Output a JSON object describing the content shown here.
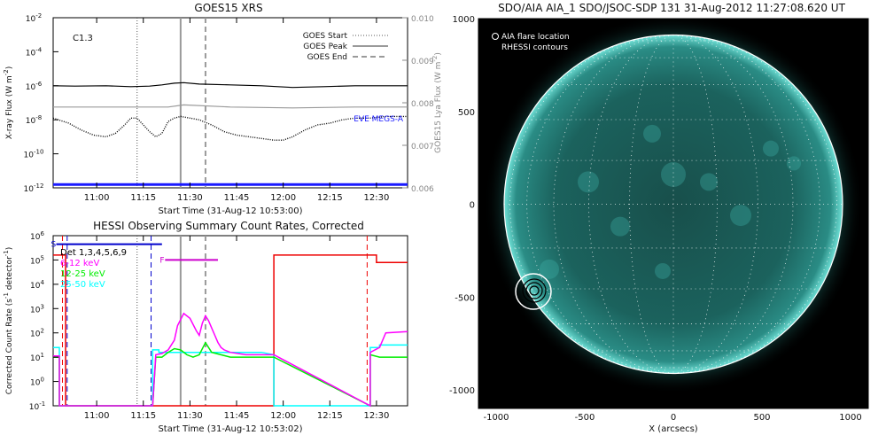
{
  "chart_data": [
    {
      "type": "line",
      "title": "GOES15 XRS",
      "xlabel": "Start Time (31-Aug-12 10:53:00)",
      "ylabel": "X-ray Flux (W m",
      "ylabel_exp": "-2",
      "ylabel_close": ")",
      "y2label": "GOES15 Lya Flux (W m",
      "y2label_exp": "-2",
      "y2label_close": ")",
      "annotation": "C1.3",
      "x_ticks": [
        "11:00",
        "11:15",
        "11:30",
        "11:45",
        "12:00",
        "12:15",
        "12:30"
      ],
      "x_tick_minutes": [
        67,
        82,
        97,
        112,
        127,
        142,
        157
      ],
      "xlim_minutes": [
        53,
        167
      ],
      "y_ticks_exp": [
        -12,
        -10,
        -8,
        -6,
        -4,
        -2
      ],
      "ylim_exp": [
        -12,
        -2
      ],
      "y_scale": "log",
      "y2_ticks": [
        "0.006",
        "0.007",
        "0.008",
        "0.009",
        "0.010"
      ],
      "y2_tick_values": [
        0.006,
        0.007,
        0.008,
        0.009,
        0.01
      ],
      "y2lim": [
        0.006,
        0.01
      ],
      "legend": [
        {
          "name": "GOES Start",
          "style": "dotted",
          "color": "#555555"
        },
        {
          "name": "GOES Peak",
          "style": "solid",
          "color": "#9a9a9a"
        },
        {
          "name": "GOES End",
          "style": "dashed",
          "color": "#9a9a9a"
        }
      ],
      "legend_position": "top-right",
      "markers": {
        "start_min": 80,
        "peak_min": 94,
        "end_min": 102
      },
      "eve_label": "EVE MEGS-A",
      "eve_color": "#1a1aff",
      "series": [
        {
          "name": "long",
          "color": "#000000",
          "x": [
            53,
            60,
            70,
            78,
            84,
            88,
            92,
            95,
            100,
            110,
            120,
            130,
            140,
            150,
            157,
            167
          ],
          "log_y": [
            -6.0,
            -6.02,
            -6.0,
            -6.05,
            -6.02,
            -5.95,
            -5.85,
            -5.82,
            -5.9,
            -5.95,
            -6.0,
            -6.1,
            -6.05,
            -6.0,
            -6.0,
            -6.0
          ]
        },
        {
          "name": "lya",
          "color": "#9a9a9a",
          "x": [
            53,
            70,
            90,
            95,
            110,
            130,
            150,
            167
          ],
          "y2": [
            0.0079,
            0.0079,
            0.0079,
            0.00795,
            0.0079,
            0.00788,
            0.0079,
            0.0079
          ]
        },
        {
          "name": "short",
          "color": "#000000",
          "style": "dotted",
          "x": [
            53,
            58,
            62,
            66,
            70,
            73,
            76,
            78,
            80,
            84,
            86,
            88,
            90,
            92,
            94,
            97,
            100,
            104,
            108,
            112,
            116,
            120,
            124,
            127,
            130,
            134,
            138,
            142,
            146,
            150,
            155,
            160,
            165,
            167
          ],
          "log_y": [
            -7.9,
            -8.2,
            -8.6,
            -8.9,
            -9.0,
            -8.8,
            -8.3,
            -7.9,
            -7.9,
            -8.7,
            -9.0,
            -8.8,
            -8.1,
            -7.9,
            -7.8,
            -7.9,
            -8.0,
            -8.3,
            -8.7,
            -8.9,
            -9.0,
            -9.1,
            -9.2,
            -9.2,
            -9.0,
            -8.6,
            -8.3,
            -8.2,
            -8.0,
            -7.9,
            -7.9,
            -7.8,
            -7.8,
            -7.8
          ]
        },
        {
          "name": "eve",
          "color": "#1a1aff",
          "x": [
            53,
            167
          ],
          "log_y": [
            -11.8,
            -11.8
          ]
        }
      ]
    },
    {
      "type": "line",
      "title": "HESSI Observing Summary Count Rates, Corrected",
      "xlabel": "Start Time (31-Aug-12 10:53:02)",
      "ylabel": "Corrected Count Rate (s",
      "ylabel_exp": "-1",
      "ylabel_mid": " detector",
      "ylabel_exp2": "-1",
      "ylabel_close": ")",
      "x_ticks": [
        "11:00",
        "11:15",
        "11:30",
        "11:45",
        "12:00",
        "12:15",
        "12:30"
      ],
      "x_tick_minutes": [
        67,
        82,
        97,
        112,
        127,
        142,
        157
      ],
      "xlim_minutes": [
        53,
        167
      ],
      "y_ticks_exp": [
        -1,
        0,
        1,
        2,
        3,
        4,
        5,
        6
      ],
      "ylim_exp": [
        -1,
        6
      ],
      "y_scale": "log",
      "legend": [
        {
          "name": "Det 1,3,4,5,6,9",
          "color": "#000000"
        },
        {
          "name": "6-12 keV",
          "color": "#ff00ff"
        },
        {
          "name": "12-25 keV",
          "color": "#00ee00"
        },
        {
          "name": "25-50 keV",
          "color": "#00ffff"
        }
      ],
      "flags": [
        {
          "label": "S",
          "color": "#0000cc",
          "x_start": 54,
          "x_end": 88,
          "log_y": 5.65
        },
        {
          "label": "F",
          "color": "#cc00cc",
          "x_start": 89,
          "x_end": 106,
          "log_y": 5.0
        }
      ],
      "markers": {
        "start_min": 80,
        "peak_min": 94,
        "end_min": 102
      },
      "series": [
        {
          "name": "attenuator",
          "color": "#ee0000",
          "x": [
            53,
            57,
            57,
            124,
            124,
            157,
            157,
            167
          ],
          "log_y": [
            5.2,
            5.2,
            -1,
            -1,
            5.2,
            5.2,
            4.9,
            4.9
          ]
        },
        {
          "name": "25-50 keV",
          "color": "#00ffff",
          "x": [
            53,
            55,
            55,
            57,
            57,
            85,
            85,
            87,
            87,
            98,
            120,
            124,
            124,
            130,
            130,
            155,
            155,
            158,
            158,
            167
          ],
          "log_y": [
            1.4,
            1.4,
            -1,
            -1,
            -1,
            -1,
            1.3,
            1.3,
            1.2,
            1.2,
            1.2,
            1.1,
            -1,
            -1,
            -1,
            -1,
            1.4,
            1.4,
            1.5,
            1.5
          ]
        },
        {
          "name": "12-25 keV",
          "color": "#00ee00",
          "x": [
            53,
            55,
            55,
            57,
            85,
            86,
            88,
            90,
            92,
            94,
            96,
            98,
            100,
            102,
            104,
            110,
            118,
            124,
            155,
            155,
            158,
            167
          ],
          "log_y": [
            1.0,
            1.0,
            -1,
            -1,
            -1,
            1.0,
            1.0,
            1.2,
            1.35,
            1.3,
            1.1,
            1.0,
            1.1,
            1.6,
            1.2,
            1.0,
            1.0,
            1.0,
            -1,
            1.1,
            1.0,
            1.0
          ]
        },
        {
          "name": "6-12 keV",
          "color": "#ff00ff",
          "x": [
            53,
            55,
            55,
            57,
            85,
            86,
            88,
            90,
            92,
            93,
            95,
            97,
            99,
            100,
            101,
            102,
            103,
            104,
            105,
            106,
            107,
            108,
            110,
            115,
            120,
            124,
            155,
            155,
            158,
            160,
            167
          ],
          "log_y": [
            1.05,
            1.05,
            -1,
            -1,
            -1,
            1.1,
            1.15,
            1.3,
            1.7,
            2.3,
            2.8,
            2.6,
            2.1,
            1.9,
            2.4,
            2.7,
            2.5,
            2.2,
            1.9,
            1.6,
            1.4,
            1.3,
            1.2,
            1.1,
            1.1,
            1.1,
            -1,
            1.2,
            1.4,
            2.0,
            2.05
          ]
        }
      ]
    },
    {
      "type": "scatter",
      "title": "SDO/AIA AIA_1 SDO/JSOC-SDP 131 31-Aug-2012 11:27:08.620 UT",
      "xlabel": "X (arcsecs)",
      "ylabel": "",
      "x_ticks": [
        "-1000",
        "-500",
        "0",
        "500",
        "1000"
      ],
      "x_tick_values": [
        -1000,
        -500,
        0,
        500,
        1000
      ],
      "y_ticks": [
        "1000",
        "500",
        "0",
        "-500",
        "-1000"
      ],
      "y_tick_values": [
        1000,
        500,
        0,
        -500,
        -1000
      ],
      "xlim": [
        -1100,
        1100
      ],
      "ylim": [
        -1100,
        1000
      ],
      "solar_radius_arcsec": 955,
      "legend": [
        "AIA flare location",
        "RHESSI contours"
      ],
      "legend_position": "top-left",
      "flare_location": {
        "x": -790,
        "y": -470
      },
      "rhessi_contour_radii_arcsec": [
        25,
        45,
        65
      ],
      "disk_color": "#1d7f78"
    }
  ]
}
